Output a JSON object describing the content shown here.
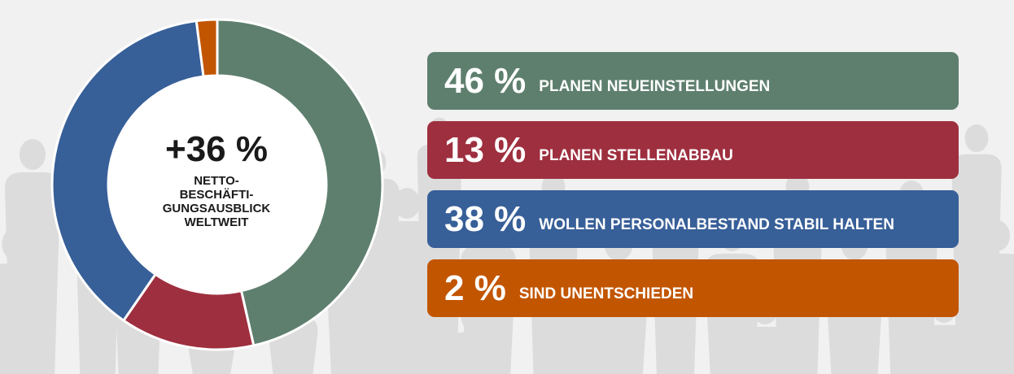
{
  "colors": {
    "green": "#5e7f6e",
    "red": "#9e2f3f",
    "blue": "#375f98",
    "orange": "#c25500",
    "background": "#f1f1f1",
    "silhouette": "#dcdcdc"
  },
  "center": {
    "value": "+36 %",
    "label": "NETTO-\nBESCHÄFTI-\nGUNGSAUSBLICK\nWELTWEIT"
  },
  "chart_data": {
    "type": "pie",
    "categories": [
      "PLANEN NEUEINSTELLUNGEN",
      "PLANEN STELLENABBAU",
      "WOLLEN PERSONALBESTAND STABIL HALTEN",
      "SIND UNENTSCHIEDEN"
    ],
    "values": [
      46,
      13,
      38,
      2
    ],
    "value_labels": [
      "46 %",
      "13 %",
      "38 %",
      "2 %"
    ],
    "colors": [
      "#5e7f6e",
      "#9e2f3f",
      "#375f98",
      "#c25500"
    ],
    "donut": true,
    "start": "top",
    "direction": "clockwise",
    "legend_placement": "right"
  }
}
